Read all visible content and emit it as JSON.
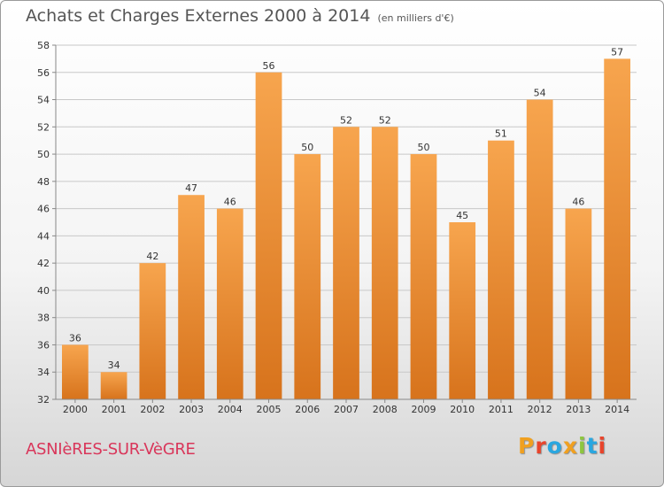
{
  "header": {
    "title": "Achats et Charges Externes 2000 à 2014",
    "subtitle": "(en milliers d'€)"
  },
  "footer": {
    "town": "ASNIèRES-SUR-VèGRE",
    "logo": "Proxiti",
    "logo_colors": [
      "#f0a020",
      "#e8452c",
      "#2aa7e0",
      "#f0a020",
      "#8dc63f",
      "#2aa7e0",
      "#e8452c"
    ]
  },
  "colors": {
    "bar_top": "#f7a54e",
    "bar_bottom": "#d7731c",
    "grid": "#c8c8c8",
    "axis_text": "#333333"
  },
  "chart_data": {
    "type": "bar",
    "categories": [
      "2000",
      "2001",
      "2002",
      "2003",
      "2004",
      "2005",
      "2006",
      "2007",
      "2008",
      "2009",
      "2010",
      "2011",
      "2012",
      "2013",
      "2014"
    ],
    "values": [
      36,
      34,
      42,
      47,
      46,
      56,
      50,
      52,
      52,
      50,
      45,
      51,
      54,
      46,
      57
    ],
    "ylim": [
      32,
      58
    ],
    "yticks": [
      32,
      34,
      36,
      38,
      40,
      42,
      44,
      46,
      48,
      50,
      52,
      54,
      56,
      58
    ],
    "grid": true
  }
}
